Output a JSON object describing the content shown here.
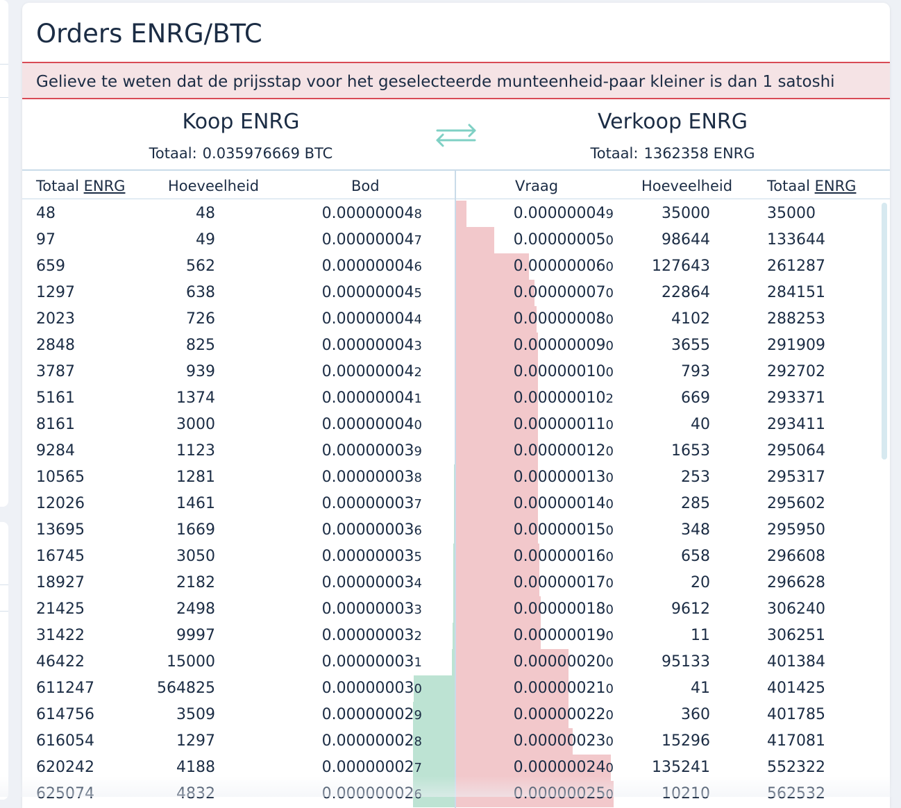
{
  "title": "Orders ENRG/BTC",
  "notice": "Gelieve te weten dat de prijsstap voor het geselecteerde munteenheid-paar kleiner is dan 1 satoshi",
  "buy": {
    "heading": "Koop ENRG",
    "total_label": "Totaal:",
    "total_value": "0.035976669 BTC"
  },
  "sell": {
    "heading": "Verkoop ENRG",
    "total_label": "Totaal:",
    "total_value": "1362358 ENRG"
  },
  "icons": {
    "swap": "swap-arrows-icon"
  },
  "colors": {
    "bid_bar": "#bde3d3",
    "ask_bar": "#f2c8cb",
    "notice_border": "#d84a55",
    "swap_icon": "#7fd0c4"
  },
  "columns": {
    "buy_total": "Totaal",
    "buy_total_unit": "ENRG",
    "buy_amount": "Hoeveelheid",
    "bid": "Bod",
    "ask": "Vraag",
    "sell_amount": "Hoeveelheid",
    "sell_total": "Totaal",
    "sell_total_unit": "ENRG"
  },
  "bids": [
    {
      "total": "48",
      "amount": "48",
      "price": "0.00000004",
      "price_tail": "8",
      "depth": 0
    },
    {
      "total": "97",
      "amount": "49",
      "price": "0.00000004",
      "price_tail": "7",
      "depth": 0
    },
    {
      "total": "659",
      "amount": "562",
      "price": "0.00000004",
      "price_tail": "6",
      "depth": 0
    },
    {
      "total": "1297",
      "amount": "638",
      "price": "0.00000004",
      "price_tail": "5",
      "depth": 0
    },
    {
      "total": "2023",
      "amount": "726",
      "price": "0.00000004",
      "price_tail": "4",
      "depth": 0
    },
    {
      "total": "2848",
      "amount": "825",
      "price": "0.00000004",
      "price_tail": "3",
      "depth": 0
    },
    {
      "total": "3787",
      "amount": "939",
      "price": "0.00000004",
      "price_tail": "2",
      "depth": 0
    },
    {
      "total": "5161",
      "amount": "1374",
      "price": "0.00000004",
      "price_tail": "1",
      "depth": 0
    },
    {
      "total": "8161",
      "amount": "3000",
      "price": "0.00000004",
      "price_tail": "0",
      "depth": 0
    },
    {
      "total": "9284",
      "amount": "1123",
      "price": "0.00000003",
      "price_tail": "9",
      "depth": 0
    },
    {
      "total": "10565",
      "amount": "1281",
      "price": "0.00000003",
      "price_tail": "8",
      "depth": 0.001
    },
    {
      "total": "12026",
      "amount": "1461",
      "price": "0.00000003",
      "price_tail": "7",
      "depth": 0.002
    },
    {
      "total": "13695",
      "amount": "1669",
      "price": "0.00000003",
      "price_tail": "6",
      "depth": 0.002
    },
    {
      "total": "16745",
      "amount": "3050",
      "price": "0.00000003",
      "price_tail": "5",
      "depth": 0.003
    },
    {
      "total": "18927",
      "amount": "2182",
      "price": "0.00000003",
      "price_tail": "4",
      "depth": 0.003
    },
    {
      "total": "21425",
      "amount": "2498",
      "price": "0.00000003",
      "price_tail": "3",
      "depth": 0.003
    },
    {
      "total": "31422",
      "amount": "9997",
      "price": "0.00000003",
      "price_tail": "2",
      "depth": 0.005
    },
    {
      "total": "46422",
      "amount": "15000",
      "price": "0.00000003",
      "price_tail": "1",
      "depth": 0.007
    },
    {
      "total": "611247",
      "amount": "564825",
      "price": "0.00000003",
      "price_tail": "0",
      "depth": 0.095
    },
    {
      "total": "614756",
      "amount": "3509",
      "price": "0.00000002",
      "price_tail": "9",
      "depth": 0.096
    },
    {
      "total": "616054",
      "amount": "1297",
      "price": "0.00000002",
      "price_tail": "8",
      "depth": 0.096
    },
    {
      "total": "620242",
      "amount": "4188",
      "price": "0.00000002",
      "price_tail": "7",
      "depth": 0.097
    },
    {
      "total": "625074",
      "amount": "4832",
      "price": "0.00000002",
      "price_tail": "6",
      "depth": 0.097
    }
  ],
  "asks": [
    {
      "price": "0.00000004",
      "price_tail": "9",
      "amount": "35000",
      "total": "35000",
      "depth": 0.007
    },
    {
      "price": "0.00000005",
      "price_tail": "0",
      "amount": "98644",
      "total": "133644",
      "depth": 0.026
    },
    {
      "price": "0.00000006",
      "price_tail": "0",
      "amount": "127643",
      "total": "261287",
      "depth": 0.05
    },
    {
      "price": "0.00000007",
      "price_tail": "0",
      "amount": "22864",
      "total": "284151",
      "depth": 0.054
    },
    {
      "price": "0.00000008",
      "price_tail": "0",
      "amount": "4102",
      "total": "288253",
      "depth": 0.055
    },
    {
      "price": "0.00000009",
      "price_tail": "0",
      "amount": "3655",
      "total": "291909",
      "depth": 0.056
    },
    {
      "price": "0.00000010",
      "price_tail": "0",
      "amount": "793",
      "total": "292702",
      "depth": 0.056
    },
    {
      "price": "0.00000010",
      "price_tail": "2",
      "amount": "669",
      "total": "293371",
      "depth": 0.056
    },
    {
      "price": "0.00000011",
      "price_tail": "0",
      "amount": "40",
      "total": "293411",
      "depth": 0.056
    },
    {
      "price": "0.00000012",
      "price_tail": "0",
      "amount": "1653",
      "total": "295064",
      "depth": 0.056
    },
    {
      "price": "0.00000013",
      "price_tail": "0",
      "amount": "253",
      "total": "295317",
      "depth": 0.056
    },
    {
      "price": "0.00000014",
      "price_tail": "0",
      "amount": "285",
      "total": "295602",
      "depth": 0.056
    },
    {
      "price": "0.00000015",
      "price_tail": "0",
      "amount": "348",
      "total": "295950",
      "depth": 0.056
    },
    {
      "price": "0.00000016",
      "price_tail": "0",
      "amount": "658",
      "total": "296608",
      "depth": 0.057
    },
    {
      "price": "0.00000017",
      "price_tail": "0",
      "amount": "20",
      "total": "296628",
      "depth": 0.057
    },
    {
      "price": "0.00000018",
      "price_tail": "0",
      "amount": "9612",
      "total": "306240",
      "depth": 0.058
    },
    {
      "price": "0.00000019",
      "price_tail": "0",
      "amount": "11",
      "total": "306251",
      "depth": 0.058
    },
    {
      "price": "0.00000020",
      "price_tail": "0",
      "amount": "95133",
      "total": "401384",
      "depth": 0.077
    },
    {
      "price": "0.00000021",
      "price_tail": "0",
      "amount": "41",
      "total": "401425",
      "depth": 0.077
    },
    {
      "price": "0.00000022",
      "price_tail": "0",
      "amount": "360",
      "total": "401785",
      "depth": 0.077
    },
    {
      "price": "0.00000023",
      "price_tail": "0",
      "amount": "15296",
      "total": "417081",
      "depth": 0.08
    },
    {
      "price": "0.00000024",
      "price_tail": "0",
      "amount": "135241",
      "total": "552322",
      "depth": 0.106
    },
    {
      "price": "0.00000025",
      "price_tail": "0",
      "amount": "10210",
      "total": "562532",
      "depth": 0.108
    }
  ]
}
